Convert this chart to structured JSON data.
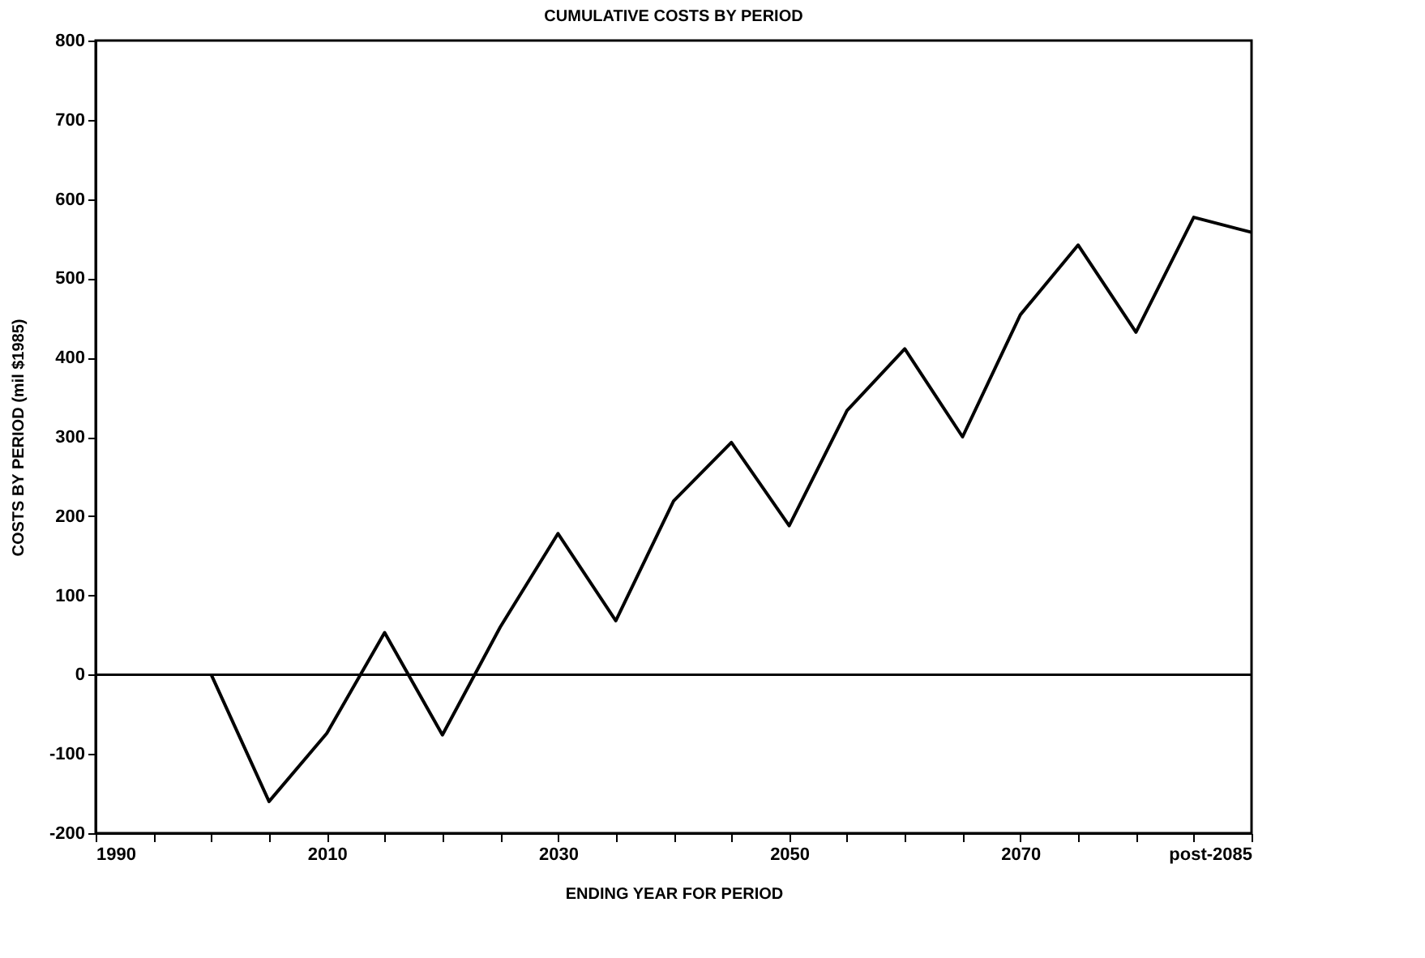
{
  "chart_data": {
    "type": "line",
    "title": "CUMULATIVE COSTS BY PERIOD",
    "xlabel": "ENDING YEAR FOR PERIOD",
    "ylabel": "COSTS BY PERIOD (mil $1985)",
    "x": [
      2000,
      2005,
      2010,
      2015,
      2020,
      2025,
      2030,
      2035,
      2040,
      2045,
      2050,
      2055,
      2060,
      2065,
      2070,
      2075,
      2080,
      2085,
      2090
    ],
    "series": [
      {
        "color": "#000000",
        "values": [
          0,
          -160,
          -74,
          53,
          -76,
          60,
          178,
          68,
          219,
          293,
          188,
          333,
          411,
          300,
          454,
          542,
          432,
          577,
          558
        ]
      }
    ],
    "xlim": [
      1990,
      2090
    ],
    "xticks": [
      1990,
      {
        "value": 1995,
        "label": null
      },
      {
        "value": 2000,
        "label": null
      },
      {
        "value": 2005,
        "label": null
      },
      2010,
      {
        "value": 2015,
        "label": null
      },
      {
        "value": 2020,
        "label": null
      },
      {
        "value": 2025,
        "label": null
      },
      2030,
      {
        "value": 2035,
        "label": null
      },
      {
        "value": 2040,
        "label": null
      },
      {
        "value": 2045,
        "label": null
      },
      2050,
      {
        "value": 2055,
        "label": null
      },
      {
        "value": 2060,
        "label": null
      },
      {
        "value": 2065,
        "label": null
      },
      2070,
      {
        "value": 2075,
        "label": null
      },
      {
        "value": 2080,
        "label": null
      },
      {
        "value": 2085,
        "label": null
      },
      {
        "value": 2090,
        "label": "post-2085"
      }
    ],
    "ylim": [
      -200,
      800
    ],
    "yticks": [
      -200,
      -100,
      0,
      100,
      200,
      300,
      400,
      500,
      600,
      700,
      800
    ],
    "ref_lines": [
      {
        "axis": "y",
        "value": 0,
        "color": "#000000"
      }
    ],
    "grid": false,
    "marker": "none",
    "line_style": "solid"
  }
}
